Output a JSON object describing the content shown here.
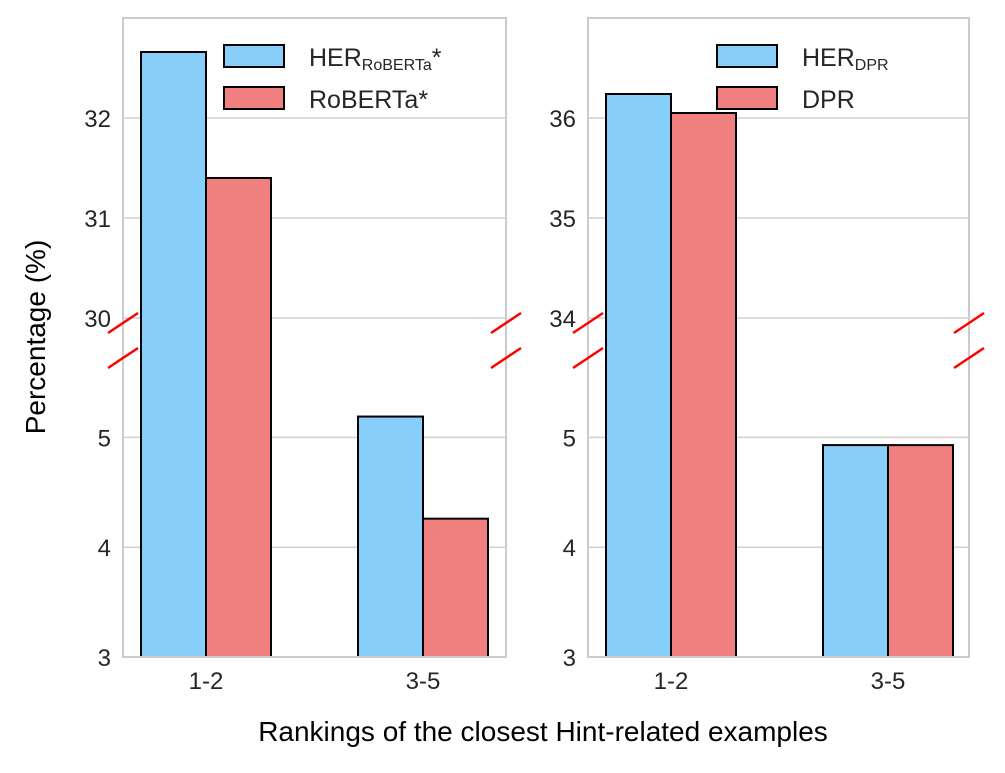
{
  "chart_data": [
    {
      "type": "bar",
      "categories": [
        "1-2",
        "3-5"
      ],
      "series": [
        {
          "name": "HER",
          "name_sub": "RoBERTa*",
          "color": "#87CEFA",
          "values": [
            32.66,
            5.19
          ]
        },
        {
          "name": "RoBERTa*",
          "name_sub": "",
          "color": "#F08080",
          "values": [
            31.4,
            4.26
          ]
        }
      ],
      "broken_axis": true,
      "upper_yticks": [
        "30",
        "31",
        "32"
      ],
      "lower_yticks": [
        "3",
        "4",
        "5"
      ],
      "upper_ylim": [
        29.75,
        33.0
      ],
      "lower_ylim": [
        3,
        5.86
      ],
      "ylabel": "Percentage (%)",
      "grid": true,
      "legend": "top-right"
    },
    {
      "type": "bar",
      "categories": [
        "1-2",
        "3-5"
      ],
      "series": [
        {
          "name": "HER",
          "name_sub": "DPR",
          "color": "#87CEFA",
          "values": [
            36.24,
            4.93
          ]
        },
        {
          "name": "DPR",
          "name_sub": "",
          "color": "#F08080",
          "values": [
            36.05,
            4.93
          ]
        }
      ],
      "broken_axis": true,
      "upper_yticks": [
        "34",
        "35",
        "36"
      ],
      "lower_yticks": [
        "3",
        "4",
        "5"
      ],
      "upper_ylim": [
        33.75,
        37.0
      ],
      "lower_ylim": [
        3,
        5.86
      ],
      "grid": true,
      "legend": "top-right"
    }
  ],
  "xlabel": "Rankings of the closest Hint-related examples"
}
